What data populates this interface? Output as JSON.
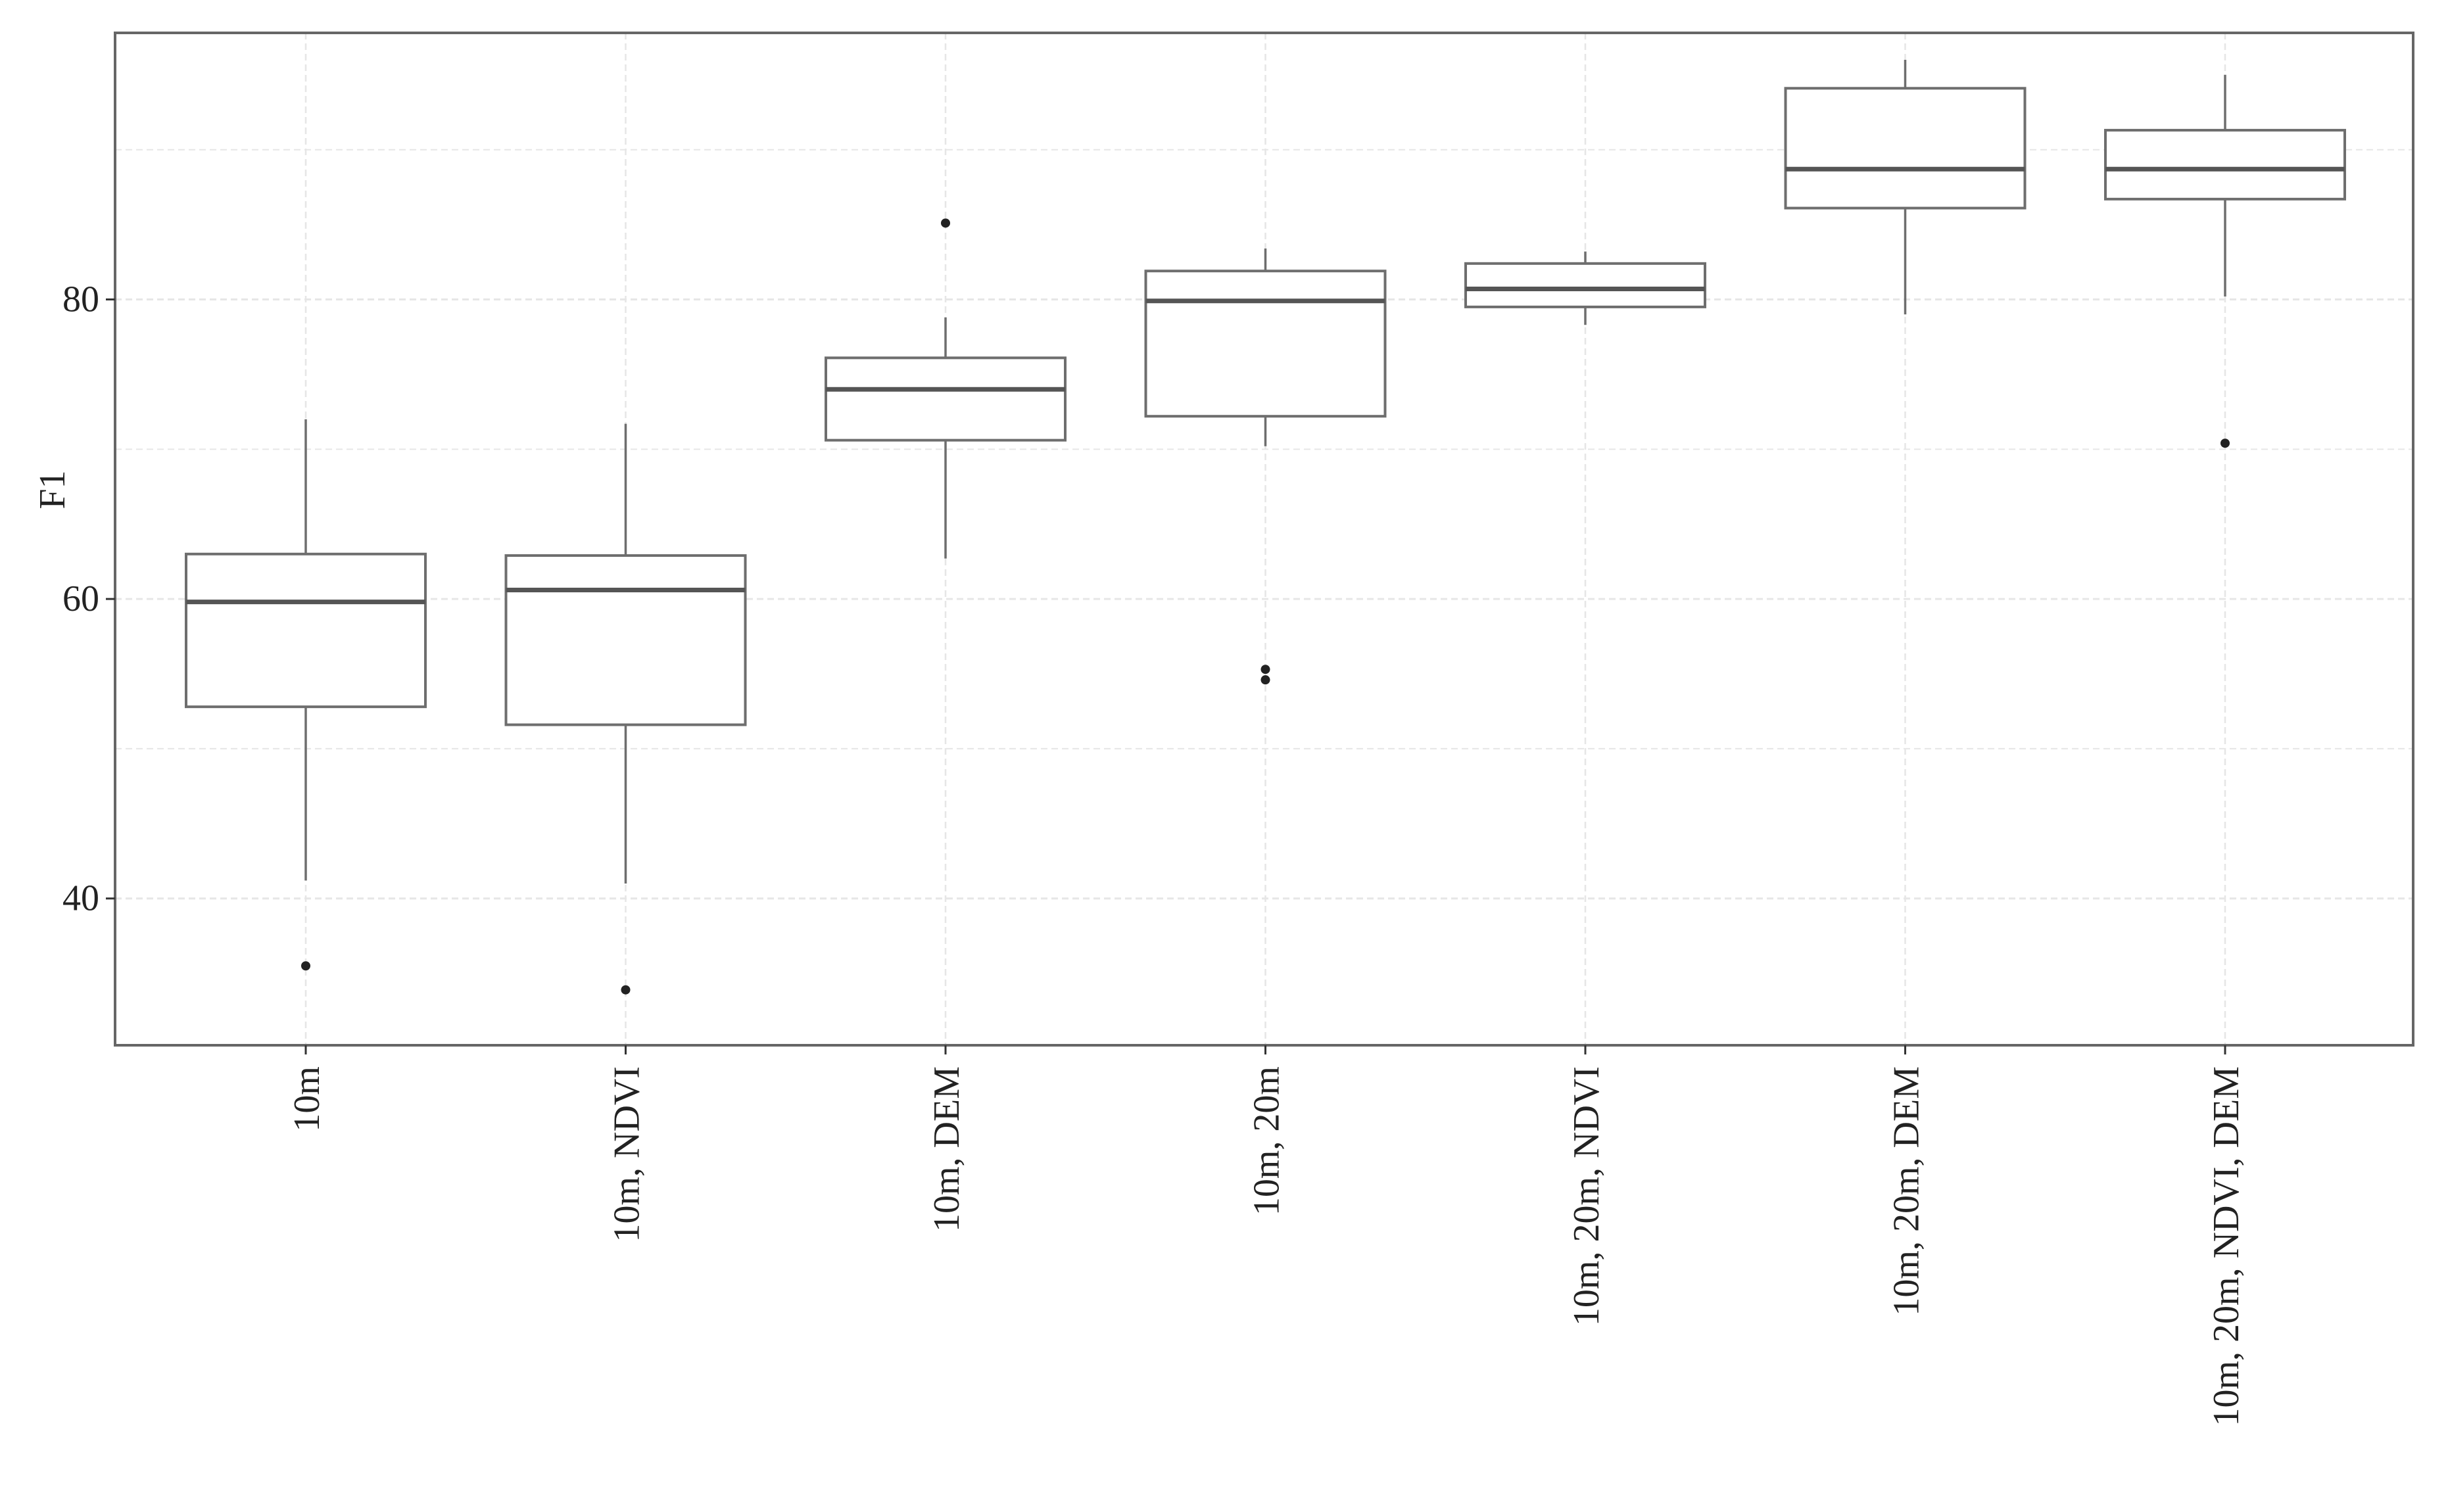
{
  "chart_data": {
    "type": "boxplot",
    "title": "",
    "xlabel": "",
    "ylabel": "F1",
    "ylim": [
      30.2,
      97.8
    ],
    "yticks": [
      40,
      60,
      80
    ],
    "grid": true,
    "legend": "none",
    "categories": [
      "10m",
      "10m, NDVI",
      "10m, DEM",
      "10m, 20m",
      "10m, 20m, NDVI",
      "10m, 20m, DEM",
      "10m, 20m, NDVI, DEM"
    ],
    "boxes": [
      {
        "whisker_low": 41.2,
        "q1": 52.8,
        "median": 59.8,
        "q3": 63.0,
        "whisker_high": 72.0,
        "outliers": [
          35.5
        ]
      },
      {
        "whisker_low": 41.0,
        "q1": 51.6,
        "median": 60.6,
        "q3": 62.9,
        "whisker_high": 71.7,
        "outliers": [
          33.9
        ]
      },
      {
        "whisker_low": 62.7,
        "q1": 70.6,
        "median": 74.0,
        "q3": 76.1,
        "whisker_high": 78.8,
        "outliers": [
          85.1
        ]
      },
      {
        "whisker_low": 70.2,
        "q1": 72.2,
        "median": 79.9,
        "q3": 81.9,
        "whisker_high": 83.4,
        "outliers": [
          55.3,
          54.6
        ]
      },
      {
        "whisker_low": 78.3,
        "q1": 79.5,
        "median": 80.7,
        "q3": 82.4,
        "whisker_high": 83.2,
        "outliers": []
      },
      {
        "whisker_low": 79.0,
        "q1": 86.1,
        "median": 88.7,
        "q3": 94.1,
        "whisker_high": 96.0,
        "outliers": []
      },
      {
        "whisker_low": 80.2,
        "q1": 86.7,
        "median": 88.7,
        "q3": 91.3,
        "whisker_high": 95.0,
        "outliers": [
          70.4
        ]
      }
    ],
    "colors": {
      "box_stroke": "#6e6e6e",
      "median": "#555555",
      "outlier": "#222222",
      "grid": "#e6e6e6",
      "panel_border": "#666666"
    }
  }
}
